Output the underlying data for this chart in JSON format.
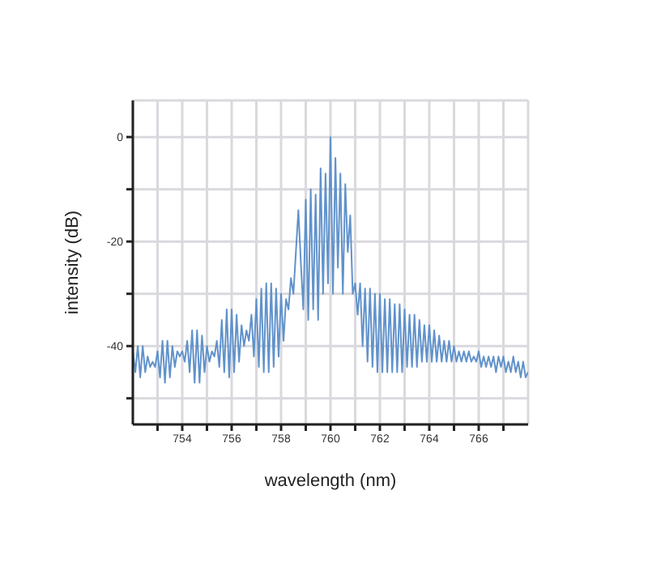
{
  "chart_data": {
    "type": "line",
    "xlabel": "wavelength (nm)",
    "ylabel": "intensity (dB)",
    "xlim": [
      752,
      768
    ],
    "ylim": [
      -55,
      7
    ],
    "xticks": [
      {
        "value": 753,
        "label": null
      },
      754,
      {
        "value": 755,
        "label": null
      },
      756,
      {
        "value": 757,
        "label": null
      },
      758,
      {
        "value": 759,
        "label": null
      },
      760,
      {
        "value": 761,
        "label": null
      },
      762,
      {
        "value": 763,
        "label": null
      },
      764,
      {
        "value": 765,
        "label": null
      },
      766,
      {
        "value": 767,
        "label": null
      }
    ],
    "yticks": [
      {
        "value": -50,
        "label": null
      },
      -40,
      {
        "value": -30,
        "label": null
      },
      -20,
      {
        "value": -10,
        "label": null
      },
      0
    ],
    "grid": true,
    "legend": false,
    "marker": "none",
    "line_style": "solid",
    "x": [
      752.0,
      752.1,
      752.2,
      752.3,
      752.4,
      752.5,
      752.6,
      752.7,
      752.8,
      752.9,
      753.0,
      753.1,
      753.2,
      753.3,
      753.4,
      753.5,
      753.6,
      753.7,
      753.8,
      753.9,
      754.0,
      754.1,
      754.2,
      754.3,
      754.4,
      754.5,
      754.6,
      754.7,
      754.8,
      754.9,
      755.0,
      755.1,
      755.2,
      755.3,
      755.4,
      755.5,
      755.6,
      755.7,
      755.8,
      755.9,
      756.0,
      756.1,
      756.2,
      756.3,
      756.4,
      756.5,
      756.6,
      756.7,
      756.8,
      756.9,
      757.0,
      757.1,
      757.2,
      757.3,
      757.4,
      757.5,
      757.6,
      757.7,
      757.8,
      757.9,
      758.0,
      758.1,
      758.2,
      758.3,
      758.4,
      758.5,
      758.6,
      758.7,
      758.8,
      758.9,
      759.0,
      759.1,
      759.2,
      759.3,
      759.4,
      759.5,
      759.6,
      759.7,
      759.8,
      759.9,
      760.0,
      760.1,
      760.2,
      760.3,
      760.4,
      760.5,
      760.6,
      760.7,
      760.8,
      760.9,
      761.0,
      761.1,
      761.2,
      761.3,
      761.4,
      761.5,
      761.6,
      761.7,
      761.8,
      761.9,
      762.0,
      762.1,
      762.2,
      762.3,
      762.4,
      762.5,
      762.6,
      762.7,
      762.8,
      762.9,
      763.0,
      763.1,
      763.2,
      763.3,
      763.4,
      763.5,
      763.6,
      763.7,
      763.8,
      763.9,
      764.0,
      764.1,
      764.2,
      764.3,
      764.4,
      764.5,
      764.6,
      764.7,
      764.8,
      764.9,
      765.0,
      765.1,
      765.2,
      765.3,
      765.4,
      765.5,
      765.6,
      765.7,
      765.8,
      765.9,
      766.0,
      766.1,
      766.2,
      766.3,
      766.4,
      766.5,
      766.6,
      766.7,
      766.8,
      766.9,
      767.0,
      767.1,
      767.2,
      767.3,
      767.4,
      767.5,
      767.6,
      767.7,
      767.8,
      767.9,
      768.0
    ],
    "series": [
      {
        "color": "#6192cb",
        "values": [
          -41,
          -45,
          -40,
          -46,
          -40,
          -45,
          -42,
          -44,
          -43,
          -44,
          -41,
          -46,
          -39,
          -47,
          -39,
          -46,
          -40,
          -44,
          -41,
          -42,
          -41,
          -43,
          -39,
          -45,
          -37,
          -47,
          -37,
          -47,
          -38,
          -45,
          -40,
          -43,
          -41,
          -42,
          -39,
          -44,
          -35,
          -45,
          -33,
          -46,
          -33,
          -45,
          -34,
          -43,
          -36,
          -40,
          -37,
          -39,
          -34,
          -42,
          -31,
          -44,
          -29,
          -45,
          -28,
          -45,
          -28,
          -44,
          -29,
          -42,
          -30,
          -39,
          -31,
          -33,
          -27,
          -30,
          -22,
          -14,
          -24,
          -33,
          -12,
          -35,
          -10,
          -33,
          -11,
          -35,
          -6,
          -30,
          -7,
          -28,
          0,
          -30,
          -4,
          -25,
          -7,
          -30,
          -9,
          -22,
          -15,
          -30,
          -28,
          -34,
          -28,
          -40,
          -29,
          -43,
          -29,
          -44,
          -30,
          -45,
          -30,
          -45,
          -31,
          -45,
          -31,
          -45,
          -32,
          -45,
          -32,
          -45,
          -33,
          -44,
          -34,
          -44,
          -34,
          -44,
          -35,
          -43,
          -36,
          -43,
          -36,
          -43,
          -37,
          -43,
          -38,
          -43,
          -39,
          -43,
          -39,
          -43,
          -40,
          -43,
          -41,
          -43,
          -41,
          -43,
          -41,
          -43,
          -42,
          -43,
          -41,
          -44,
          -42,
          -44,
          -42,
          -44,
          -42,
          -45,
          -42,
          -44,
          -42,
          -45,
          -43,
          -45,
          -42,
          -45,
          -43,
          -46,
          -43,
          -46,
          -45
        ]
      }
    ]
  }
}
